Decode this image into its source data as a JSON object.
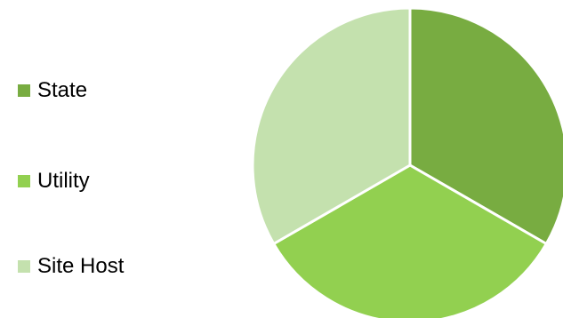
{
  "chart_data": {
    "type": "pie",
    "title": "",
    "series": [
      {
        "name": "State",
        "value": 33.3,
        "color": "#78AC41"
      },
      {
        "name": "Utility",
        "value": 33.3,
        "color": "#92D050"
      },
      {
        "name": "Site Host",
        "value": 33.3,
        "color": "#C4E1AE"
      }
    ],
    "legend_position": "left",
    "start_angle_deg": 0,
    "direction": "clockwise",
    "slice_border_color": "#FFFFFF"
  }
}
